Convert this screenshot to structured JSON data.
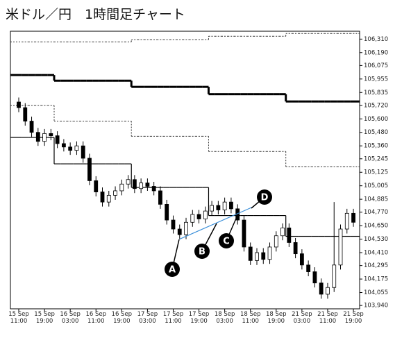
{
  "chart_data": {
    "type": "candlestick",
    "title": "米ドル／円　1時間足チャート",
    "categories": [
      "15 Sep\n11:00",
      null,
      null,
      null,
      "15 Sep\n19:00",
      null,
      null,
      null,
      "16 Sep\n03:00",
      null,
      null,
      null,
      "16 Sep\n11:00",
      null,
      null,
      null,
      "16 Sep\n19:00",
      null,
      null,
      null,
      "17 Sep\n03:00",
      null,
      null,
      null,
      "17 Sep\n11:00",
      null,
      null,
      null,
      "17 Sep\n19:00",
      null,
      null,
      null,
      "18 Sep\n03:00",
      null,
      null,
      null,
      "18 Sep\n11:00",
      null,
      null,
      null,
      "18 Sep\n19:00",
      null,
      null,
      null,
      "21 Sep\n03:00",
      null,
      null,
      null,
      "21 Sep\n11:00",
      null,
      null,
      null,
      "21 Sep\n19:00"
    ],
    "open": [
      105.75,
      105.7,
      105.58,
      105.48,
      105.4,
      105.47,
      105.45,
      105.38,
      105.35,
      105.32,
      105.36,
      105.25,
      105.05,
      104.95,
      104.86,
      104.92,
      104.96,
      105.02,
      105.06,
      104.98,
      105.03,
      105.0,
      104.96,
      104.84,
      104.7,
      104.62,
      104.57,
      104.68,
      104.75,
      104.71,
      104.78,
      104.83,
      104.79,
      104.86,
      104.8,
      104.7,
      104.46,
      104.34,
      104.41,
      104.35,
      104.46,
      104.56,
      104.63,
      104.5,
      104.4,
      104.3,
      104.24,
      104.14,
      104.04,
      104.1,
      104.3,
      104.62,
      104.76
    ],
    "high": [
      105.79,
      105.74,
      105.62,
      105.52,
      105.51,
      105.51,
      105.49,
      105.42,
      105.39,
      105.4,
      105.4,
      105.29,
      105.09,
      104.99,
      104.96,
      105.0,
      105.06,
      105.1,
      105.1,
      105.07,
      105.07,
      105.04,
      105.0,
      104.88,
      104.74,
      104.66,
      104.72,
      104.79,
      104.79,
      104.82,
      104.87,
      104.87,
      104.9,
      104.9,
      104.84,
      104.74,
      104.5,
      104.45,
      104.45,
      104.5,
      104.6,
      104.67,
      104.67,
      104.54,
      104.44,
      104.34,
      104.28,
      104.18,
      104.14,
      104.86,
      104.66,
      104.8,
      104.8
    ],
    "low": [
      105.66,
      105.54,
      105.44,
      105.36,
      105.36,
      105.41,
      105.34,
      105.31,
      105.28,
      105.28,
      105.21,
      105.01,
      104.91,
      104.82,
      104.82,
      104.88,
      104.92,
      104.98,
      104.94,
      104.94,
      104.96,
      104.92,
      104.8,
      104.66,
      104.58,
      104.53,
      104.53,
      104.64,
      104.67,
      104.67,
      104.74,
      104.75,
      104.75,
      104.76,
      104.66,
      104.42,
      104.3,
      104.3,
      104.31,
      104.31,
      104.42,
      104.52,
      104.46,
      104.36,
      104.26,
      104.2,
      104.1,
      104.0,
      104.0,
      104.06,
      104.26,
      104.58,
      104.64
    ],
    "close": [
      105.7,
      105.58,
      105.48,
      105.4,
      105.47,
      105.45,
      105.38,
      105.35,
      105.32,
      105.36,
      105.25,
      105.05,
      104.95,
      104.86,
      104.92,
      104.96,
      105.02,
      105.06,
      104.98,
      105.03,
      105.0,
      104.96,
      104.84,
      104.7,
      104.62,
      104.57,
      104.68,
      104.75,
      104.71,
      104.78,
      104.83,
      104.79,
      104.86,
      104.8,
      104.7,
      104.46,
      104.34,
      104.41,
      104.35,
      104.46,
      104.56,
      104.63,
      104.5,
      104.4,
      104.3,
      104.24,
      104.14,
      104.04,
      104.1,
      104.3,
      104.62,
      104.76,
      104.68
    ],
    "up_color": "#ffffff",
    "down_color": "#000000",
    "lines": [
      {
        "dash": "2,2",
        "width": 1,
        "color": "#333333",
        "values": [
          106.285,
          106.285,
          106.285,
          106.285,
          106.285,
          106.285,
          106.285,
          106.285,
          106.285,
          106.285,
          106.285,
          106.285,
          106.285,
          106.285,
          106.285,
          106.285,
          106.285,
          106.285,
          106.305,
          106.305,
          106.305,
          106.305,
          106.305,
          106.305,
          106.305,
          106.305,
          106.305,
          106.305,
          106.305,
          106.305,
          106.335,
          106.335,
          106.335,
          106.335,
          106.335,
          106.335,
          106.335,
          106.335,
          106.335,
          106.335,
          106.335,
          106.335,
          106.36,
          106.36,
          106.36,
          106.36,
          106.36,
          106.36,
          106.36,
          106.36,
          106.36,
          106.36,
          106.36
        ]
      },
      {
        "dash": "none",
        "width": 3,
        "color": "#000000",
        "values": [
          105.99,
          105.99,
          105.99,
          105.99,
          105.99,
          105.99,
          105.94,
          105.94,
          105.94,
          105.94,
          105.94,
          105.94,
          105.94,
          105.94,
          105.94,
          105.94,
          105.94,
          105.94,
          105.885,
          105.885,
          105.885,
          105.885,
          105.885,
          105.885,
          105.885,
          105.885,
          105.885,
          105.885,
          105.885,
          105.885,
          105.82,
          105.82,
          105.82,
          105.82,
          105.82,
          105.82,
          105.82,
          105.82,
          105.82,
          105.82,
          105.82,
          105.82,
          105.755,
          105.755,
          105.755,
          105.755,
          105.755,
          105.755,
          105.755,
          105.755,
          105.755,
          105.755,
          105.755
        ]
      },
      {
        "dash": "2,2",
        "width": 1,
        "color": "#333333",
        "values": [
          105.72,
          105.72,
          105.72,
          105.72,
          105.72,
          105.72,
          105.58,
          105.58,
          105.58,
          105.58,
          105.58,
          105.58,
          105.58,
          105.58,
          105.58,
          105.58,
          105.58,
          105.58,
          105.445,
          105.445,
          105.445,
          105.445,
          105.445,
          105.445,
          105.445,
          105.445,
          105.445,
          105.445,
          105.445,
          105.445,
          105.31,
          105.31,
          105.31,
          105.31,
          105.31,
          105.31,
          105.31,
          105.31,
          105.31,
          105.31,
          105.31,
          105.31,
          105.175,
          105.175,
          105.175,
          105.175,
          105.175,
          105.175,
          105.175,
          105.175,
          105.175,
          105.175,
          105.175
        ]
      },
      {
        "dash": "none",
        "width": 1.2,
        "color": "#000000",
        "values": [
          105.435,
          105.435,
          105.435,
          105.435,
          105.435,
          105.435,
          105.2,
          105.2,
          105.2,
          105.2,
          105.2,
          105.2,
          105.2,
          105.2,
          105.2,
          105.2,
          105.2,
          105.2,
          104.99,
          104.99,
          104.99,
          104.99,
          104.99,
          104.99,
          104.99,
          104.99,
          104.99,
          104.99,
          104.99,
          104.99,
          104.74,
          104.74,
          104.74,
          104.74,
          104.74,
          104.74,
          104.74,
          104.74,
          104.74,
          104.74,
          104.74,
          104.74,
          104.555,
          104.555,
          104.555,
          104.555,
          104.555,
          104.555,
          104.555,
          104.555,
          104.555,
          104.555,
          104.555
        ]
      }
    ],
    "trendline": {
      "color": "#3a8fd9",
      "x": [
        25,
        36.5
      ],
      "values": [
        104.53,
        104.82
      ]
    },
    "annotations": [
      "A",
      "B",
      "C",
      "D"
    ],
    "ylim": [
      103.91,
      106.38
    ],
    "yticks": [
      {
        "value": 103.94,
        "label": "103,940"
      },
      {
        "value": 104.055,
        "label": "104,055"
      },
      {
        "value": 104.175,
        "label": "104,175"
      },
      {
        "value": 104.295,
        "label": "104,295"
      },
      {
        "value": 104.41,
        "label": "104,410"
      },
      {
        "value": 104.53,
        "label": "104,530"
      },
      {
        "value": 104.65,
        "label": "104,650"
      },
      {
        "value": 104.77,
        "label": "104,770"
      },
      {
        "value": 104.885,
        "label": "104,885"
      },
      {
        "value": 105.005,
        "label": "105,005"
      },
      {
        "value": 105.125,
        "label": "105,125"
      },
      {
        "value": 105.245,
        "label": "105,245"
      },
      {
        "value": 105.36,
        "label": "105,360"
      },
      {
        "value": 105.48,
        "label": "105,480"
      },
      {
        "value": 105.6,
        "label": "105,600"
      },
      {
        "value": 105.72,
        "label": "105,720"
      },
      {
        "value": 105.835,
        "label": "105,835"
      },
      {
        "value": 105.955,
        "label": "105,955"
      },
      {
        "value": 106.075,
        "label": "106,075"
      },
      {
        "value": 106.19,
        "label": "106,190"
      },
      {
        "value": 106.31,
        "label": "106,310"
      }
    ]
  }
}
